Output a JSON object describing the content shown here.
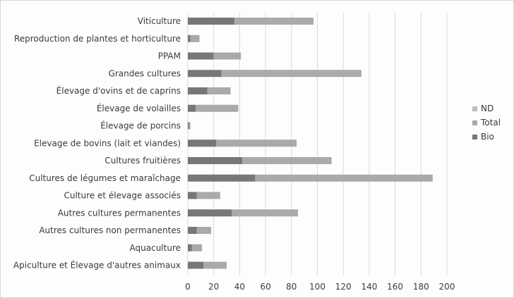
{
  "chart_data": {
    "type": "bar",
    "orientation": "horizontal",
    "stacked": true,
    "categories": [
      "Viticulture",
      "Reproduction de plantes et horticulture",
      "PPAM",
      "Grandes cultures",
      "Élevage d'ovins et de caprins",
      "Élevage de volailles",
      "Élevage de porcins",
      "Elevage de bovins (lait et viandes)",
      "Cultures fruitières",
      "Cultures de légumes et maraîchage",
      "Culture et élevage associés",
      "Autres cultures permanentes",
      "Autres cultures non permanentes",
      "Aquaculture",
      "Apiculture et Élevage d'autres animaux"
    ],
    "series": [
      {
        "name": "Bio",
        "values": [
          36,
          2,
          20,
          26,
          15,
          6,
          1,
          22,
          42,
          52,
          7,
          34,
          7,
          3,
          12
        ]
      },
      {
        "name": "Total",
        "values": [
          61,
          7,
          21,
          108,
          18,
          33,
          1,
          62,
          69,
          137,
          18,
          51,
          11,
          8,
          18
        ]
      },
      {
        "name": "ND",
        "values": [
          0,
          0,
          0,
          0,
          0,
          0,
          0,
          0,
          0,
          0,
          0,
          0,
          0,
          0,
          0
        ]
      }
    ],
    "xlim": [
      0,
      200
    ],
    "xticks": [
      "0",
      "20",
      "40",
      "60",
      "80",
      "100",
      "120",
      "140",
      "160",
      "180",
      "200"
    ],
    "grid": true,
    "legend_position": "right",
    "colors": {
      "Bio": "#777777",
      "Total": "#aaaaaa",
      "ND": "#bdbdbd",
      "grid": "#d9d9d9"
    }
  }
}
